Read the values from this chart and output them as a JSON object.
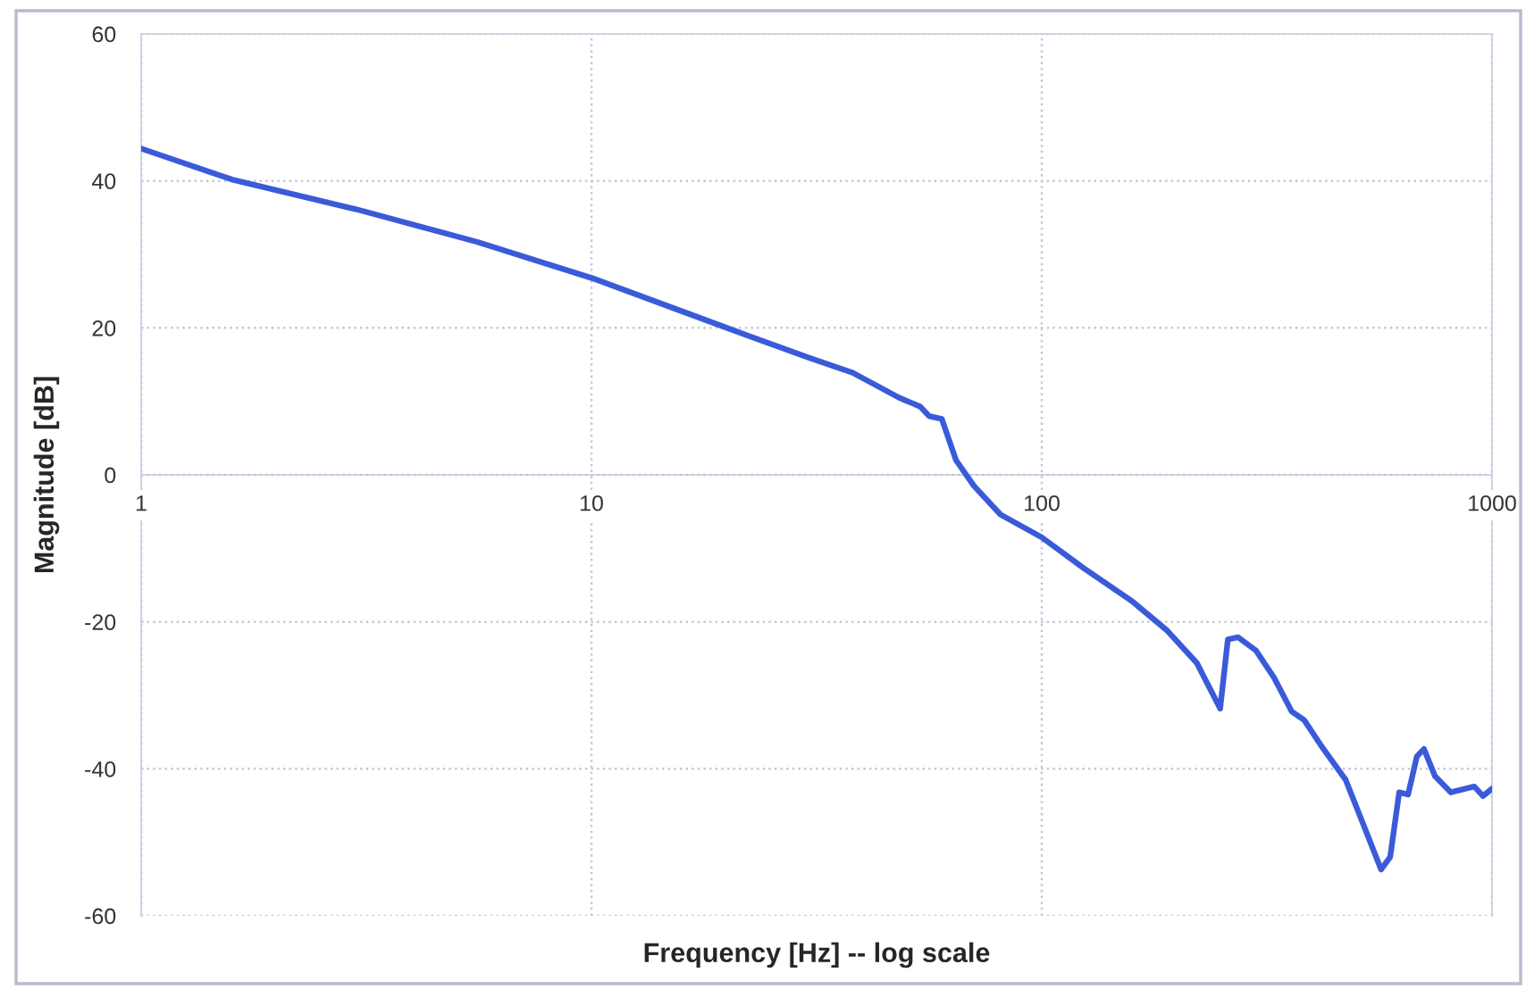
{
  "chart_data": {
    "type": "line",
    "xlabel": "Frequency [Hz] -- log scale",
    "ylabel": "Magnitude [dB]",
    "log": "x",
    "x": [
      1,
      1.59,
      3.02,
      5.57,
      10,
      22.6,
      30.5,
      38,
      48.2,
      53.7,
      56.2,
      60,
      64.5,
      70.7,
      81,
      100,
      124,
      158,
      190,
      221,
      249,
      259,
      273,
      299,
      328,
      359,
      383,
      420,
      473,
      518,
      567,
      594,
      622,
      651,
      681,
      706,
      747,
      810,
      913,
      955,
      1000
    ],
    "series": [
      {
        "color": "#3a5bd9",
        "values": [
          44.4,
          40.2,
          36.1,
          31.7,
          26.8,
          18.8,
          15.9,
          13.9,
          10.5,
          9.3,
          8.0,
          7.6,
          2.0,
          -1.5,
          -5.4,
          -8.5,
          -12.7,
          -17.1,
          -21.2,
          -25.6,
          -31.8,
          -22.4,
          -22.1,
          -23.9,
          -27.6,
          -32.2,
          -33.4,
          -37.1,
          -41.5,
          -47.6,
          -53.7,
          -52.0,
          -43.2,
          -43.5,
          -38.3,
          -37.3,
          -41.0,
          -43.2,
          -42.4,
          -43.7,
          -42.7
        ]
      }
    ],
    "xlim": [
      1,
      1000
    ],
    "ylim": [
      -60,
      60
    ],
    "xticks": [
      1,
      10,
      100,
      1000
    ],
    "yticks": [
      -60,
      -40,
      -20,
      0,
      20,
      40,
      60
    ],
    "grid": true,
    "line_style": "solid"
  }
}
